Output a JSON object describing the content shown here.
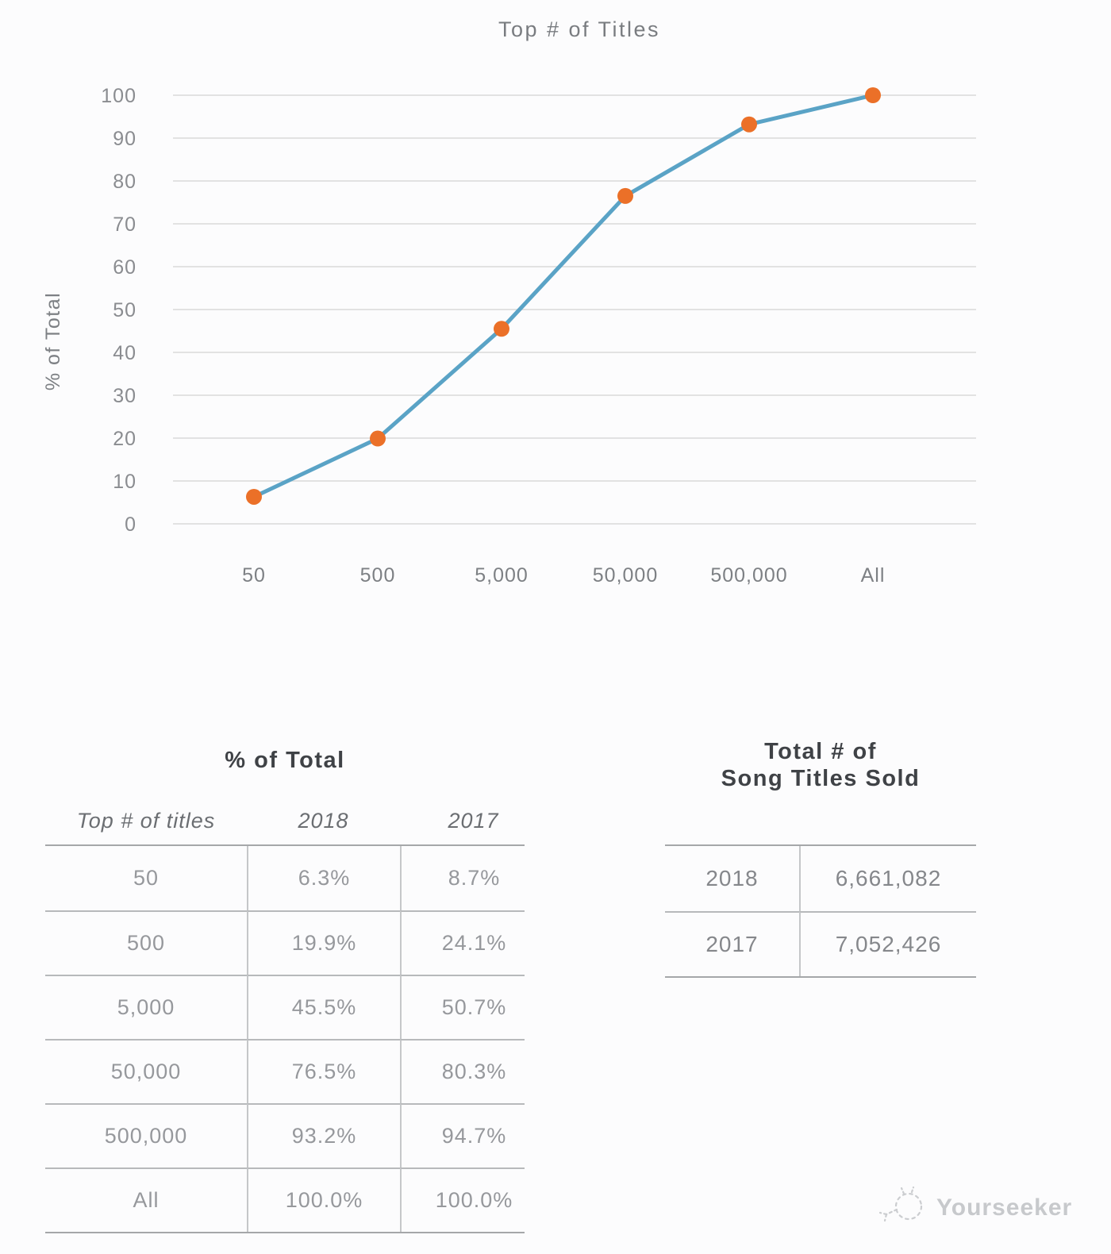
{
  "chart_data": {
    "type": "line",
    "title": "Top # of Titles",
    "ylabel": "% of Total",
    "categories": [
      "50",
      "500",
      "5,000",
      "50,000",
      "500,000",
      "All"
    ],
    "series": [
      {
        "name": "2018",
        "values": [
          6.3,
          19.9,
          45.5,
          76.5,
          93.2,
          100.0
        ]
      }
    ],
    "ylim": [
      0,
      100
    ],
    "ytick_step": 10,
    "grid": true,
    "legend_position": "none",
    "line_color": "#5AA3C6",
    "marker_color": "#EB7028"
  },
  "percent_table": {
    "title": "% of Total",
    "columns": [
      "Top # of titles",
      "2018",
      "2017"
    ],
    "rows": [
      [
        "50",
        "6.3%",
        "8.7%"
      ],
      [
        "500",
        "19.9%",
        "24.1%"
      ],
      [
        "5,000",
        "45.5%",
        "50.7%"
      ],
      [
        "50,000",
        "76.5%",
        "80.3%"
      ],
      [
        "500,000",
        "93.2%",
        "94.7%"
      ],
      [
        "All",
        "100.0%",
        "100.0%"
      ]
    ]
  },
  "totals_table": {
    "title_line1": "Total # of",
    "title_line2": "Song Titles Sold",
    "rows": [
      [
        "2018",
        "6,661,082"
      ],
      [
        "2017",
        "7,052,426"
      ]
    ]
  },
  "watermark": {
    "label": "Yourseeker"
  }
}
